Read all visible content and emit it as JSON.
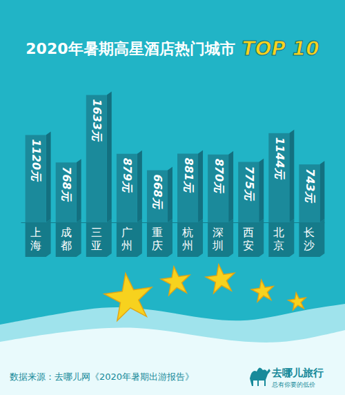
{
  "chart_data": {
    "type": "bar",
    "title": "2020年暑期高星酒店热门城市",
    "subtitle": "TOP 10",
    "categories": [
      "上海",
      "成都",
      "三亚",
      "广州",
      "重庆",
      "杭州",
      "深圳",
      "西安",
      "北京",
      "长沙"
    ],
    "values": [
      1120,
      768,
      1633,
      879,
      668,
      881,
      870,
      775,
      1144,
      743
    ],
    "value_labels": [
      "1120元",
      "768元",
      "1633元",
      "879元",
      "668元",
      "881元",
      "870元",
      "775元",
      "1144元",
      "743元"
    ],
    "color": "#1b8a9b",
    "ylim": [
      0,
      1700
    ],
    "data_labels": true,
    "tick_labels": "x"
  },
  "footer": {
    "source": "数据来源：去哪儿网《2020年暑期出游报告》",
    "brand": "去哪儿旅行",
    "slogan": "总有你要的低价"
  }
}
